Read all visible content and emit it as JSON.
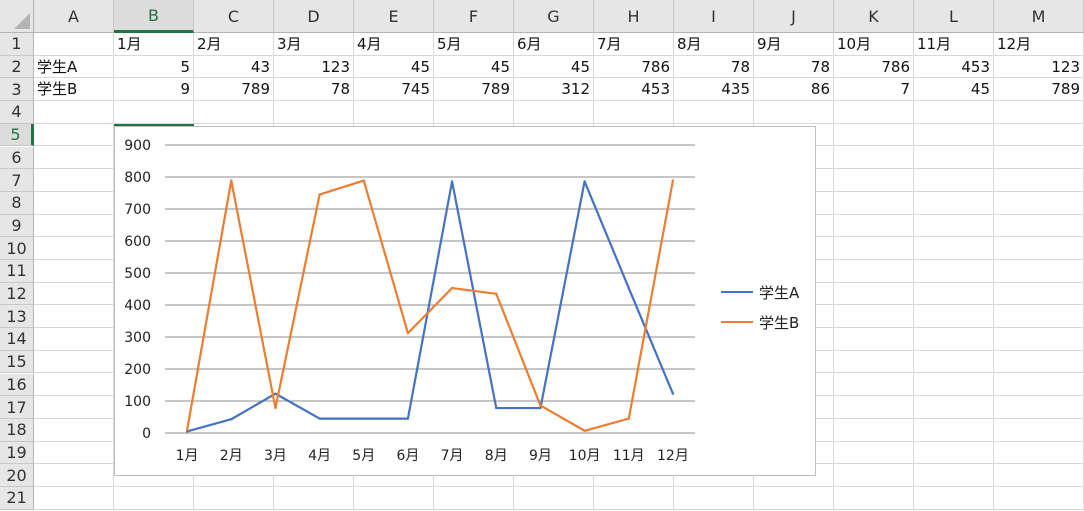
{
  "columns": [
    "A",
    "B",
    "C",
    "D",
    "E",
    "F",
    "G",
    "H",
    "I",
    "J",
    "K",
    "L",
    "M"
  ],
  "rows": [
    "1",
    "2",
    "3",
    "4",
    "5",
    "6",
    "7",
    "8",
    "9",
    "10",
    "11",
    "12",
    "13",
    "14",
    "15",
    "16",
    "17",
    "18",
    "19",
    "20",
    "21"
  ],
  "cells": {
    "r1": [
      "",
      "1月",
      "2月",
      "3月",
      "4月",
      "5月",
      "6月",
      "7月",
      "8月",
      "9月",
      "10月",
      "11月",
      "12月"
    ],
    "r2": [
      "学生A",
      "5",
      "43",
      "123",
      "45",
      "45",
      "45",
      "786",
      "78",
      "78",
      "786",
      "453",
      "123"
    ],
    "r3": [
      "学生B",
      "9",
      "789",
      "78",
      "745",
      "789",
      "312",
      "453",
      "435",
      "86",
      "7",
      "45",
      "789"
    ]
  },
  "colors": {
    "seriesA": "#4472c4",
    "seriesB": "#ed7d31",
    "accent": "#217346"
  },
  "chart_data": {
    "type": "line",
    "categories": [
      "1月",
      "2月",
      "3月",
      "4月",
      "5月",
      "6月",
      "7月",
      "8月",
      "9月",
      "10月",
      "11月",
      "12月"
    ],
    "series": [
      {
        "name": "学生A",
        "values": [
          5,
          43,
          123,
          45,
          45,
          45,
          786,
          78,
          78,
          786,
          453,
          123
        ]
      },
      {
        "name": "学生B",
        "values": [
          9,
          789,
          78,
          745,
          789,
          312,
          453,
          435,
          86,
          7,
          45,
          789
        ]
      }
    ],
    "ylim": [
      0,
      900
    ],
    "yticks": [
      0,
      100,
      200,
      300,
      400,
      500,
      600,
      700,
      800,
      900
    ],
    "grid": true,
    "legend": "right"
  }
}
